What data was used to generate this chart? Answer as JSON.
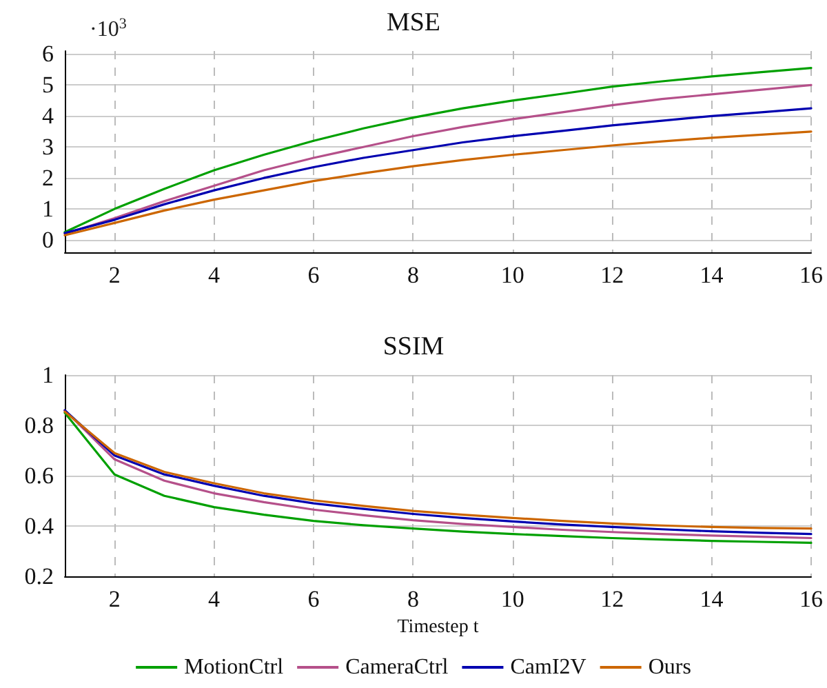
{
  "chart_data": [
    {
      "type": "line",
      "title": "MSE",
      "annotations": [
        "·10$^{3}$"
      ],
      "x": [
        1,
        2,
        3,
        4,
        5,
        6,
        7,
        8,
        9,
        10,
        11,
        12,
        13,
        14,
        15,
        16
      ],
      "xlim": [
        1,
        16
      ],
      "xticks": [
        2,
        4,
        6,
        8,
        10,
        12,
        14,
        16
      ],
      "ylim": [
        -0.4,
        6.1
      ],
      "yticks": [
        0,
        1,
        2,
        3,
        4,
        5,
        6
      ],
      "grid": true,
      "legend": false,
      "line_style": "solid",
      "marker": "none",
      "series": [
        {
          "color": "#00a000",
          "values": [
            0.25,
            1.0,
            1.65,
            2.25,
            2.75,
            3.2,
            3.6,
            3.95,
            4.25,
            4.5,
            4.72,
            4.95,
            5.12,
            5.28,
            5.42,
            5.55
          ]
        },
        {
          "color": "#b5508a",
          "values": [
            0.2,
            0.7,
            1.25,
            1.75,
            2.25,
            2.65,
            3.0,
            3.35,
            3.65,
            3.9,
            4.12,
            4.35,
            4.55,
            4.7,
            4.85,
            5.0
          ]
        },
        {
          "color": "#0000b0",
          "values": [
            0.22,
            0.65,
            1.15,
            1.6,
            2.0,
            2.35,
            2.65,
            2.9,
            3.15,
            3.35,
            3.52,
            3.7,
            3.85,
            4.0,
            4.12,
            4.25
          ]
        },
        {
          "color": "#cc6600",
          "values": [
            0.15,
            0.55,
            0.95,
            1.3,
            1.6,
            1.9,
            2.15,
            2.38,
            2.58,
            2.75,
            2.9,
            3.05,
            3.18,
            3.3,
            3.4,
            3.5
          ]
        }
      ]
    },
    {
      "type": "line",
      "title": "SSIM",
      "xlabel": "Timestep t",
      "x": [
        1,
        2,
        3,
        4,
        5,
        6,
        7,
        8,
        9,
        10,
        11,
        12,
        13,
        14,
        15,
        16
      ],
      "xlim": [
        1,
        16
      ],
      "xticks": [
        2,
        4,
        6,
        8,
        10,
        12,
        14,
        16
      ],
      "ylim": [
        0.2,
        1
      ],
      "yticks": [
        0.2,
        0.4,
        0.6,
        0.8,
        1
      ],
      "grid": true,
      "legend": "bottom",
      "line_style": "solid",
      "marker": "none",
      "series": [
        {
          "name": "MotionCtrl",
          "color": "#00a000",
          "values": [
            0.85,
            0.605,
            0.52,
            0.475,
            0.445,
            0.42,
            0.403,
            0.39,
            0.378,
            0.368,
            0.36,
            0.352,
            0.346,
            0.341,
            0.337,
            0.333
          ]
        },
        {
          "name": "CameraCtrl",
          "color": "#b5508a",
          "values": [
            0.86,
            0.665,
            0.58,
            0.53,
            0.495,
            0.465,
            0.443,
            0.423,
            0.408,
            0.396,
            0.385,
            0.376,
            0.368,
            0.362,
            0.357,
            0.352
          ]
        },
        {
          "name": "CamI2V",
          "color": "#0000b0",
          "values": [
            0.86,
            0.68,
            0.605,
            0.56,
            0.52,
            0.49,
            0.468,
            0.448,
            0.432,
            0.418,
            0.406,
            0.396,
            0.387,
            0.379,
            0.373,
            0.368
          ]
        },
        {
          "name": "Ours",
          "color": "#cc6600",
          "values": [
            0.855,
            0.69,
            0.615,
            0.57,
            0.53,
            0.502,
            0.48,
            0.46,
            0.445,
            0.432,
            0.42,
            0.41,
            0.402,
            0.396,
            0.392,
            0.39
          ]
        }
      ]
    }
  ]
}
